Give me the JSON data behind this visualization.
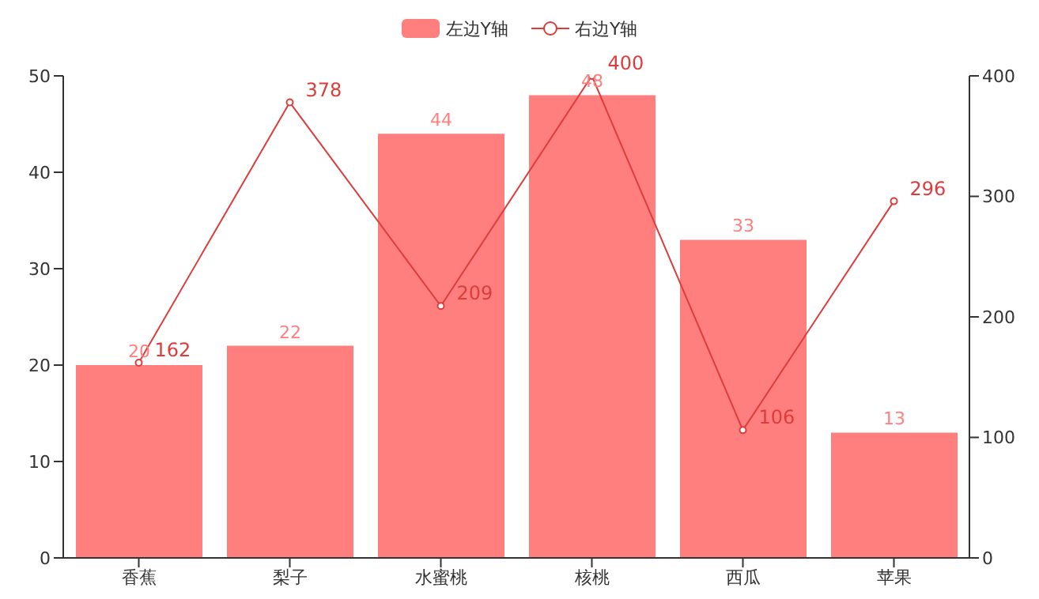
{
  "chart_data": {
    "type": "bar",
    "categories": [
      "香蕉",
      "梨子",
      "水蜜桃",
      "核桃",
      "西瓜",
      "苹果"
    ],
    "series": [
      {
        "name": "左边Y轴",
        "color": "#ff7f7f",
        "values": [
          20,
          22,
          44,
          48,
          33,
          13
        ]
      },
      {
        "name": "右边Y轴",
        "type": "line",
        "axis": "y2",
        "color": "#dd3c3c",
        "values": [
          162,
          378,
          209,
          400,
          106,
          296
        ]
      }
    ],
    "ylim": [
      0,
      50
    ],
    "yticks": [
      0,
      10,
      20,
      30,
      40,
      50
    ],
    "y2lim": [
      0,
      400
    ],
    "y2ticks": [
      0,
      100,
      200,
      300,
      400
    ],
    "data_labels": true,
    "legend": "top",
    "grid": false,
    "marker": "circle"
  }
}
